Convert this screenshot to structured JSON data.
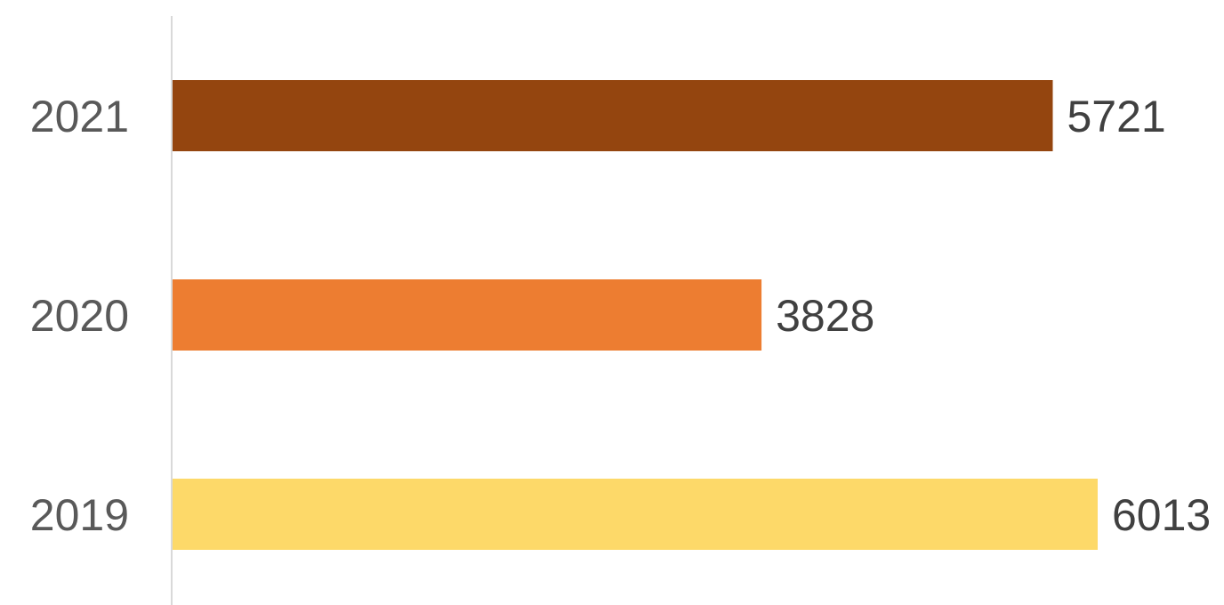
{
  "chart_data": {
    "type": "bar",
    "orientation": "horizontal",
    "categories": [
      "2021",
      "2020",
      "2019"
    ],
    "values": [
      5721,
      3828,
      6013
    ],
    "colors": [
      "#94450F",
      "#ED7D31",
      "#FDD969"
    ],
    "title": "",
    "xlabel": "",
    "ylabel": "",
    "xlim": [
      0,
      6013
    ],
    "grid": false,
    "legend": "none"
  }
}
